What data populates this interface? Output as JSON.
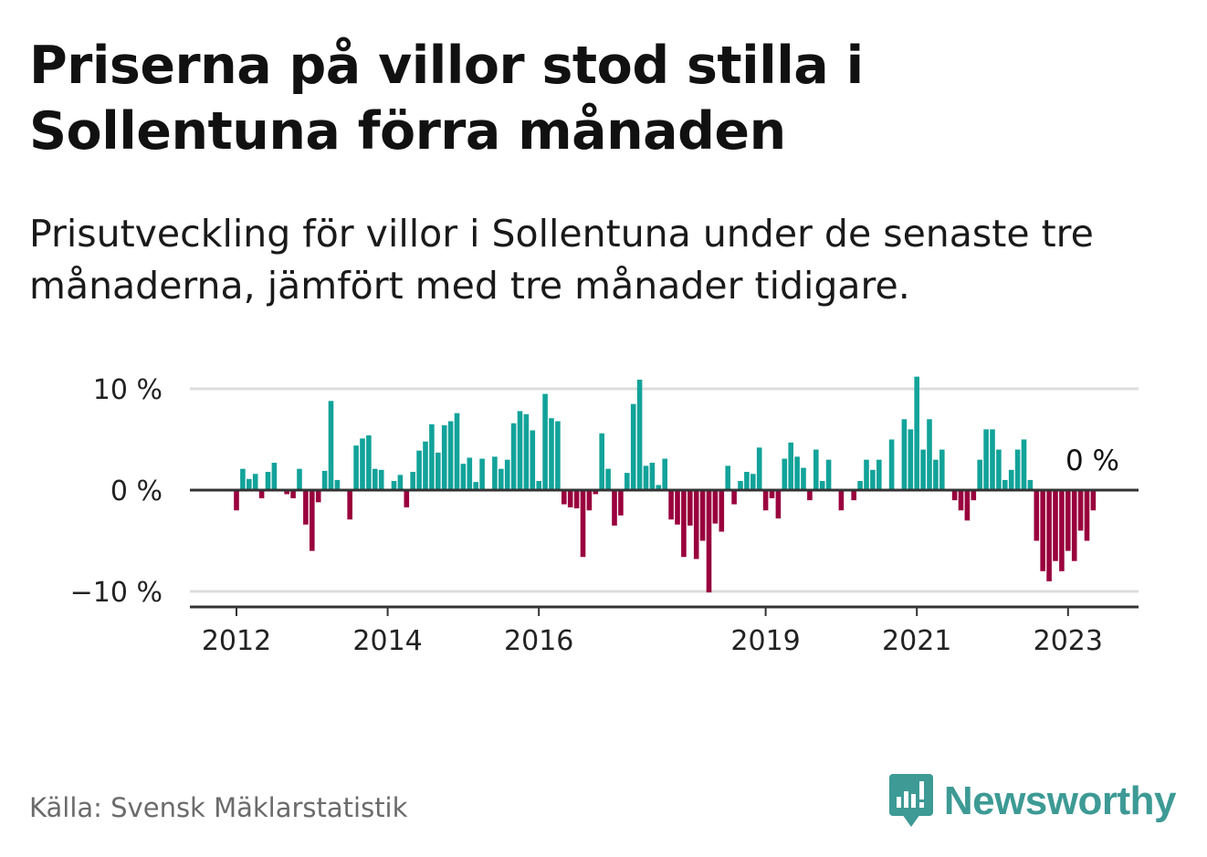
{
  "title": "Priserna på villor stod stilla i Sollentuna förra månaden",
  "subtitle": "Prisutveckling för villor i Sollentuna under de senaste tre månaderna, jämfört med tre månader tidigare.",
  "source": "Källa: Svensk Mäklarstatistik",
  "brand": "Newsworthy",
  "colors": {
    "positive": "#12a39a",
    "negative": "#99003d",
    "grid": "#dddddd",
    "axis": "#333333",
    "brand": "#3d9a95"
  },
  "chart_data": {
    "type": "bar",
    "title": "Priserna på villor stod stilla i Sollentuna förra månaden",
    "ylabel": "",
    "xlabel": "",
    "ylim": [
      -11.5,
      11.5
    ],
    "yticks": [
      10,
      0,
      -10
    ],
    "ytick_labels": [
      "10 %",
      "0 %",
      "−10 %"
    ],
    "grid": true,
    "start": "2012-01",
    "frequency": "monthly",
    "xtick_labels": [
      {
        "label": "2012",
        "index": 0
      },
      {
        "label": "2014",
        "index": 24
      },
      {
        "label": "2016",
        "index": 48
      },
      {
        "label": "2019",
        "index": 84
      },
      {
        "label": "2021",
        "index": 108
      },
      {
        "label": "2023",
        "index": 132
      }
    ],
    "last_value_label": "0 %",
    "values": [
      -2.0,
      2.1,
      1.1,
      1.6,
      -0.8,
      1.8,
      2.7,
      0.0,
      -0.4,
      -0.8,
      2.1,
      -3.4,
      -6.0,
      -1.2,
      1.9,
      8.8,
      1.0,
      0.0,
      -2.9,
      4.4,
      5.1,
      5.4,
      2.1,
      2.0,
      0.0,
      0.9,
      1.5,
      -1.7,
      1.8,
      3.9,
      4.8,
      6.5,
      3.7,
      6.4,
      6.8,
      7.6,
      2.6,
      3.2,
      0.8,
      3.1,
      0.0,
      3.3,
      2.1,
      3.0,
      6.6,
      7.8,
      7.5,
      5.9,
      0.9,
      9.5,
      7.1,
      6.8,
      -1.4,
      -1.7,
      -1.8,
      -6.6,
      -2.0,
      -0.4,
      5.6,
      2.1,
      -3.5,
      -2.5,
      1.7,
      8.5,
      10.9,
      2.4,
      2.7,
      0.5,
      3.1,
      -2.9,
      -3.4,
      -6.6,
      -3.5,
      -6.8,
      -5.0,
      -10.1,
      -3.3,
      -4.1,
      2.4,
      -1.4,
      0.9,
      1.8,
      1.6,
      4.2,
      -2.0,
      -0.8,
      -2.8,
      3.1,
      4.7,
      3.3,
      2.2,
      -1.0,
      4.0,
      0.9,
      3.0,
      0.0,
      -2.0,
      0.0,
      -1.0,
      0.9,
      3.0,
      2.0,
      3.0,
      0.0,
      5.0,
      0.0,
      7.0,
      6.0,
      11.2,
      4.0,
      7.0,
      3.0,
      4.0,
      0.0,
      -1.0,
      -2.0,
      -3.0,
      -1.0,
      3.0,
      6.0,
      6.0,
      4.0,
      1.0,
      2.0,
      4.0,
      5.0,
      1.0,
      -5.0,
      -8.0,
      -9.0,
      -7.0,
      -8.0,
      -6.0,
      -7.0,
      -4.0,
      -5.0,
      -2.0,
      0.0
    ]
  }
}
